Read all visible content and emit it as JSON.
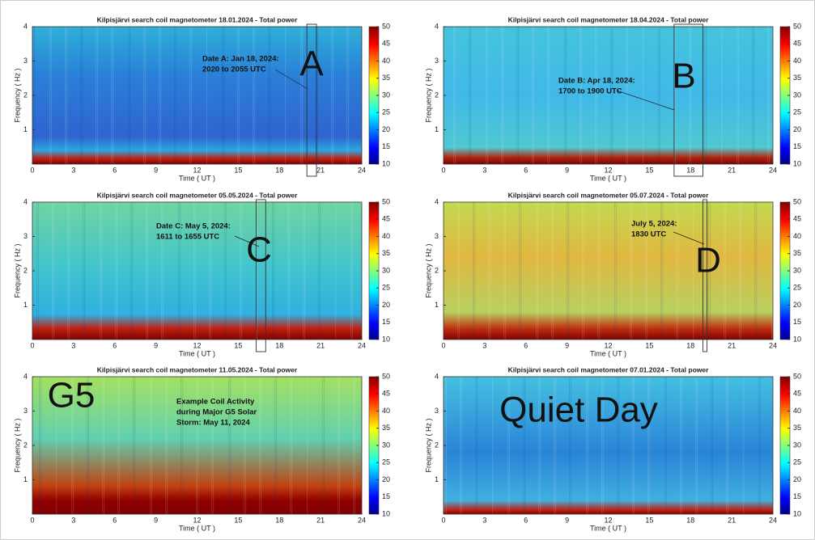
{
  "chart_data": [
    {
      "type": "spectrogram",
      "title": "Kilpisjärvi search coil magnetometer 18.01.2024 - Total power",
      "xlabel": "Time ( UT )",
      "ylabel": "Frequency ( Hz )",
      "xlim": [
        0,
        24
      ],
      "xticks": [
        0,
        3,
        6,
        9,
        12,
        15,
        18,
        21,
        24
      ],
      "ylim": [
        0,
        4
      ],
      "yticks": [
        1,
        2,
        3,
        4
      ],
      "clim": [
        10,
        50
      ],
      "cticks": [
        10,
        15,
        20,
        25,
        30,
        35,
        40,
        45,
        50
      ],
      "annotation": [
        "Date A: Jan 18, 2024:",
        "2020 to 2055 UTC"
      ],
      "letter": "A",
      "highlight_x": [
        20.0,
        20.7
      ]
    },
    {
      "type": "spectrogram",
      "title": "Kilpisjärvi search coil magnetometer 18.04.2024 - Total power",
      "xlabel": "Time ( UT )",
      "ylabel": "Frequency ( Hz )",
      "xlim": [
        0,
        24
      ],
      "xticks": [
        0,
        3,
        6,
        9,
        12,
        15,
        18,
        21,
        24
      ],
      "ylim": [
        0,
        4
      ],
      "yticks": [
        1,
        2,
        3,
        4
      ],
      "clim": [
        10,
        50
      ],
      "cticks": [
        10,
        15,
        20,
        25,
        30,
        35,
        40,
        45,
        50
      ],
      "annotation": [
        "Date B: Apr 18, 2024:",
        "1700 to 1900 UTC"
      ],
      "letter": "B",
      "highlight_x": [
        16.8,
        18.9
      ]
    },
    {
      "type": "spectrogram",
      "title": "Kilpisjärvi search coil magnetometer 05.05.2024 - Total power",
      "xlabel": "Time ( UT )",
      "ylabel": "Frequency ( Hz )",
      "xlim": [
        0,
        24
      ],
      "xticks": [
        0,
        3,
        6,
        9,
        12,
        15,
        18,
        21,
        24
      ],
      "ylim": [
        0,
        4
      ],
      "yticks": [
        1,
        2,
        3,
        4
      ],
      "clim": [
        10,
        50
      ],
      "cticks": [
        10,
        15,
        20,
        25,
        30,
        35,
        40,
        45,
        50
      ],
      "annotation": [
        "Date C: May 5, 2024:",
        "1611 to 1655 UTC"
      ],
      "letter": "C",
      "highlight_x": [
        16.3,
        17.0
      ]
    },
    {
      "type": "spectrogram",
      "title": "Kilpisjärvi search coil magnetometer 05.07.2024 - Total power",
      "xlabel": "Time ( UT )",
      "ylabel": "Frequency ( Hz )",
      "xlim": [
        0,
        24
      ],
      "xticks": [
        0,
        3,
        6,
        9,
        12,
        15,
        18,
        21,
        24
      ],
      "ylim": [
        0,
        4
      ],
      "yticks": [
        1,
        2,
        3,
        4
      ],
      "clim": [
        10,
        50
      ],
      "cticks": [
        10,
        15,
        20,
        25,
        30,
        35,
        40,
        45,
        50
      ],
      "annotation": [
        "July 5, 2024:",
        "1830 UTC"
      ],
      "letter": "D",
      "highlight_x": [
        18.9,
        19.2
      ]
    },
    {
      "type": "spectrogram",
      "title": "Kilpisjärvi search coil magnetometer 11.05.2024 - Total power",
      "xlabel": "Time ( UT )",
      "ylabel": "Frequency ( Hz )",
      "xlim": [
        0,
        24
      ],
      "xticks": [
        0,
        3,
        6,
        9,
        12,
        15,
        18,
        21,
        24
      ],
      "ylim": [
        0,
        4
      ],
      "yticks": [
        1,
        2,
        3,
        4
      ],
      "clim": [
        10,
        50
      ],
      "cticks": [
        10,
        15,
        20,
        25,
        30,
        35,
        40,
        45,
        50
      ],
      "annotation": [
        "Example Coil Activity",
        "during Major G5 Solar",
        "Storm: May 11, 2024"
      ],
      "letter": "G5"
    },
    {
      "type": "spectrogram",
      "title": "Kilpisjärvi search coil magnetometer 07.01.2024 - Total power",
      "xlabel": "Time ( UT )",
      "ylabel": "Frequency ( Hz )",
      "xlim": [
        0,
        24
      ],
      "xticks": [
        0,
        3,
        6,
        9,
        12,
        15,
        18,
        21,
        24
      ],
      "ylim": [
        0,
        4
      ],
      "yticks": [
        1,
        2,
        3,
        4
      ],
      "clim": [
        10,
        50
      ],
      "cticks": [
        10,
        15,
        20,
        25,
        30,
        35,
        40,
        45,
        50
      ],
      "letter": "Quiet Day"
    }
  ]
}
